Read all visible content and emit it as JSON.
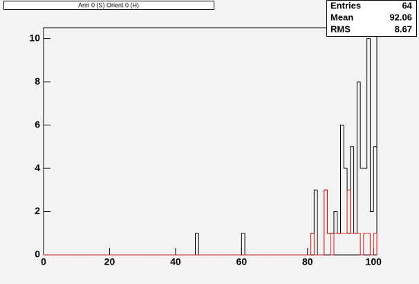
{
  "chart_data": {
    "type": "histogram",
    "title": "Arm 0 (S) Orient 0 (H)",
    "stats": [
      {
        "label": "Entries",
        "value": 64
      },
      {
        "label": "Mean",
        "value": 92.06
      },
      {
        "label": "RMS",
        "value": 8.67
      }
    ],
    "bins": [
      0,
      1,
      2,
      3,
      4,
      5,
      6,
      7,
      8,
      9,
      10,
      11,
      12,
      13,
      14,
      15,
      16,
      17,
      18,
      19,
      20,
      21,
      22,
      23,
      24,
      25,
      26,
      27,
      28,
      29,
      30,
      31,
      32,
      33,
      34,
      35,
      36,
      37,
      38,
      39,
      40,
      41,
      42,
      43,
      44,
      45,
      46,
      47,
      48,
      49,
      50,
      51,
      52,
      53,
      54,
      55,
      56,
      57,
      58,
      59,
      60,
      61,
      62,
      63,
      64,
      65,
      66,
      67,
      68,
      69,
      70,
      71,
      72,
      73,
      74,
      75,
      76,
      77,
      78,
      79,
      80,
      81,
      82,
      83,
      84,
      85,
      86,
      87,
      88,
      89,
      90,
      91,
      92,
      93,
      94,
      95,
      96,
      97,
      98,
      99,
      100,
      101
    ],
    "series": [
      {
        "color": "#000000",
        "values": [
          0,
          0,
          0,
          0,
          0,
          0,
          0,
          0,
          0,
          0,
          0,
          0,
          0,
          0,
          0,
          0,
          0,
          0,
          0,
          0,
          0,
          0,
          0,
          0,
          0,
          0,
          0,
          0,
          0,
          0,
          0,
          0,
          0,
          0,
          0,
          0,
          0,
          0,
          0,
          0,
          0,
          0,
          0,
          0,
          0,
          0,
          1,
          0,
          0,
          0,
          0,
          0,
          0,
          0,
          0,
          0,
          0,
          0,
          0,
          0,
          1,
          0,
          0,
          0,
          0,
          0,
          0,
          0,
          0,
          0,
          0,
          0,
          0,
          0,
          0,
          0,
          0,
          0,
          0,
          0,
          0,
          1,
          3,
          0,
          0,
          3,
          1,
          1,
          2,
          1,
          6,
          4,
          1,
          5,
          1,
          8,
          4,
          4,
          10,
          2,
          5
        ]
      },
      {
        "color": "#e8141a",
        "values": [
          0,
          0,
          0,
          0,
          0,
          0,
          0,
          0,
          0,
          0,
          0,
          0,
          0,
          0,
          0,
          0,
          0,
          0,
          0,
          0,
          0,
          0,
          0,
          0,
          0,
          0,
          0,
          0,
          0,
          0,
          0,
          0,
          0,
          0,
          0,
          0,
          0,
          0,
          0,
          0,
          0,
          0,
          0,
          0,
          0,
          0,
          0,
          0,
          0,
          0,
          0,
          0,
          0,
          0,
          0,
          0,
          0,
          0,
          0,
          0,
          0,
          0,
          0,
          0,
          0,
          0,
          0,
          0,
          0,
          0,
          0,
          0,
          0,
          0,
          0,
          0,
          0,
          0,
          0,
          0,
          0,
          1,
          0,
          0,
          0,
          3,
          1,
          0,
          1,
          1,
          1,
          1,
          3,
          1,
          1,
          1,
          0,
          1,
          1,
          0,
          1
        ]
      }
    ],
    "xlim": [
      0,
      101
    ],
    "xticks": [
      0,
      20,
      40,
      60,
      80,
      100
    ],
    "ylim": [
      0,
      10.5
    ],
    "yticks": [
      0,
      2,
      4,
      6,
      8,
      10
    ]
  }
}
